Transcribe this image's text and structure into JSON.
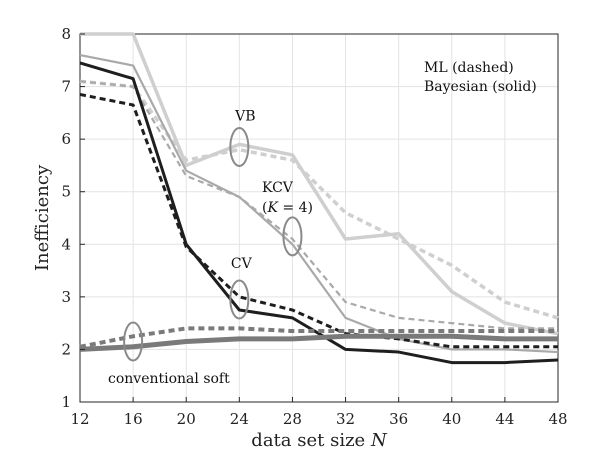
{
  "chart_data": {
    "type": "line",
    "xlabel_prefix": "data set size ",
    "xlabel_var": "N",
    "ylabel": "Inefficiency",
    "x": [
      12,
      16,
      20,
      24,
      28,
      32,
      36,
      40,
      44,
      48
    ],
    "xticks": [
      "12",
      "16",
      "20",
      "24",
      "28",
      "32",
      "36",
      "40",
      "44",
      "48"
    ],
    "yticks": [
      "1",
      "2",
      "3",
      "4",
      "5",
      "6",
      "7",
      "8"
    ],
    "xlim": [
      12,
      48
    ],
    "ylim": [
      1,
      8
    ],
    "grid": true,
    "legend": {
      "line1": "ML (dashed)",
      "line2": "Bayesian (solid)",
      "placement": "top-right"
    },
    "annotations": {
      "vb": "VB",
      "kcv": "KCV",
      "kcv_k": "K",
      "kcv_eq": " = 4)",
      "kcv_open": "(",
      "cv": "CV",
      "conventional": "conventional soft"
    },
    "series": [
      {
        "name": "VB Bayesian",
        "style": "solid",
        "color": "#cfcfcf",
        "width": 3.5,
        "values": [
          8.0,
          8.0,
          5.5,
          5.9,
          5.7,
          4.1,
          4.2,
          3.1,
          2.5,
          2.3
        ]
      },
      {
        "name": "VB ML",
        "style": "dashed",
        "color": "#cfcfcf",
        "width": 3.5,
        "values": [
          7.1,
          7.0,
          5.6,
          5.8,
          5.6,
          4.6,
          4.1,
          3.6,
          2.9,
          2.6
        ]
      },
      {
        "name": "KCV Bayesian",
        "style": "solid",
        "color": "#a9a9a9",
        "width": 2.2,
        "values": [
          7.6,
          7.4,
          5.4,
          4.9,
          4.0,
          2.6,
          2.2,
          2.0,
          2.0,
          1.95
        ]
      },
      {
        "name": "KCV ML",
        "style": "dashed",
        "color": "#a9a9a9",
        "width": 2.2,
        "values": [
          7.1,
          7.0,
          5.3,
          4.9,
          4.1,
          2.9,
          2.6,
          2.5,
          2.4,
          2.4
        ]
      },
      {
        "name": "CV Bayesian",
        "style": "solid",
        "color": "#1e1e1e",
        "width": 3.0,
        "values": [
          7.45,
          7.15,
          4.0,
          2.75,
          2.6,
          2.0,
          1.95,
          1.75,
          1.75,
          1.8
        ]
      },
      {
        "name": "CV ML",
        "style": "dashed",
        "color": "#1e1e1e",
        "width": 3.0,
        "values": [
          6.85,
          6.65,
          3.95,
          3.0,
          2.75,
          2.3,
          2.2,
          2.05,
          2.05,
          2.05
        ]
      },
      {
        "name": "conventional soft Bayesian",
        "style": "solid",
        "color": "#7a7a7a",
        "width": 5.0,
        "values": [
          2.0,
          2.05,
          2.15,
          2.2,
          2.2,
          2.25,
          2.25,
          2.25,
          2.2,
          2.2
        ]
      },
      {
        "name": "conventional soft ML",
        "style": "dashed",
        "color": "#7a7a7a",
        "width": 4.0,
        "values": [
          2.05,
          2.25,
          2.4,
          2.4,
          2.35,
          2.35,
          2.35,
          2.35,
          2.35,
          2.35
        ]
      }
    ]
  }
}
